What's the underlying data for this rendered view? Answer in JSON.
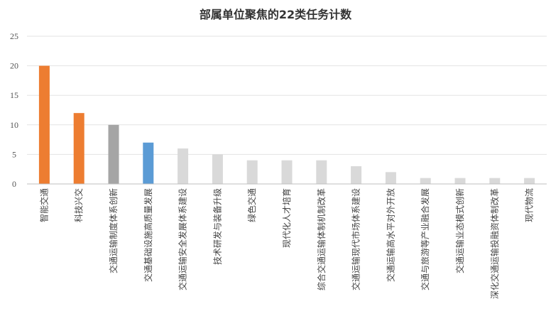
{
  "chart_data": {
    "type": "bar",
    "title": "部属单位聚焦的22类任务计数",
    "xlabel": "",
    "ylabel": "",
    "ylim": [
      0,
      25
    ],
    "yticks": [
      "0",
      "5",
      "10",
      "15",
      "20",
      "25"
    ],
    "grid": true,
    "legend": "none",
    "categories": [
      "智能交通",
      "科技兴交",
      "交通运输制度体系创新",
      "交通基础设施高质量发展",
      "交通运输安全发展体系建设",
      "技术研发与装备升级",
      "绿色交通",
      "现代化人才培育",
      "综合交通运输体制机制改革",
      "交通运输现代市场体系建设",
      "交通运输高水平对外开放",
      "交通与旅游等产业融合发展",
      "交通运输业态模式创新",
      "深化交通运输投融资体制改革",
      "现代物流"
    ],
    "values": [
      20,
      12,
      10,
      7,
      6,
      5,
      4,
      4,
      4,
      3,
      2,
      1,
      1,
      1,
      1
    ],
    "colors": [
      "#ED7D31",
      "#ED7D31",
      "#A5A5A5",
      "#5B9BD5",
      "#D9D9D9",
      "#D9D9D9",
      "#D9D9D9",
      "#D9D9D9",
      "#D9D9D9",
      "#D9D9D9",
      "#D9D9D9",
      "#D9D9D9",
      "#D9D9D9",
      "#D9D9D9",
      "#D9D9D9"
    ]
  }
}
